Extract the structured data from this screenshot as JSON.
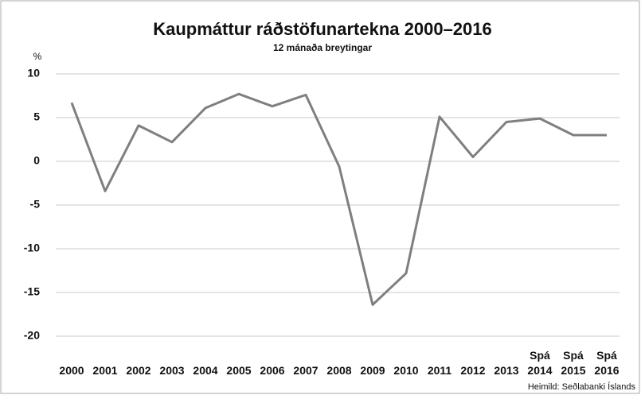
{
  "chart_data": {
    "type": "line",
    "title": "Kaupmáttur ráðstöfunartekna 2000–2016",
    "subtitle": "12 mánaða breytingar",
    "y_label": "%",
    "source": "Heimild: Seðlabanki Íslands",
    "categories": [
      "2000",
      "2001",
      "2002",
      "2003",
      "2004",
      "2005",
      "2006",
      "2007",
      "2008",
      "2009",
      "2010",
      "2011",
      "2012",
      "2013",
      "Spá 2014",
      "Spá 2015",
      "Spá 2016"
    ],
    "series": [
      {
        "name": "Kaupmáttur",
        "color": "#7f7f7f",
        "values": [
          6.7,
          -3.4,
          4.1,
          2.2,
          6.1,
          7.7,
          6.3,
          7.6,
          -0.6,
          -16.4,
          -12.8,
          5.1,
          0.5,
          4.5,
          4.9,
          3.0,
          3.0
        ]
      }
    ],
    "ylim": [
      -20,
      10
    ],
    "yticks": [
      -20,
      -15,
      -10,
      -5,
      0,
      5,
      10
    ],
    "grid": true
  }
}
